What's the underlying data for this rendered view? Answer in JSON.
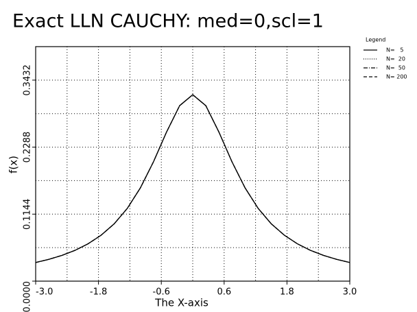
{
  "chart_data": {
    "type": "line",
    "title": "Exact LLN CAUCHY: med=0,scl=1",
    "x_label": "The X-axis",
    "y_label": "f(x)",
    "legend_title": "Legend",
    "x": [
      -3,
      -2.75,
      -2.5,
      -2.25,
      -2,
      -1.75,
      -1.5,
      -1.25,
      -1,
      -0.75,
      -0.5,
      -0.25,
      0,
      0.25,
      0.5,
      0.75,
      1,
      1.25,
      1.5,
      1.75,
      2,
      2.25,
      2.5,
      2.75,
      3
    ],
    "series": [
      {
        "name": "N=   5",
        "color": "#000000",
        "dash": "solid",
        "values": [
          0.0318,
          0.0372,
          0.0439,
          0.0525,
          0.0637,
          0.0784,
          0.0979,
          0.1242,
          0.1592,
          0.2037,
          0.2546,
          0.2996,
          0.3183,
          0.2996,
          0.2546,
          0.2037,
          0.1592,
          0.1242,
          0.0979,
          0.0784,
          0.0637,
          0.0525,
          0.0439,
          0.0372,
          0.0318
        ]
      },
      {
        "name": "N=  20",
        "color": "#000000",
        "dash": "dotted",
        "values": [
          0.0318,
          0.0372,
          0.0439,
          0.0525,
          0.0637,
          0.0784,
          0.0979,
          0.1242,
          0.1592,
          0.2037,
          0.2546,
          0.2996,
          0.3183,
          0.2996,
          0.2546,
          0.2037,
          0.1592,
          0.1242,
          0.0979,
          0.0784,
          0.0637,
          0.0525,
          0.0439,
          0.0372,
          0.0318
        ]
      },
      {
        "name": "N=  50",
        "color": "#000000",
        "dash": "dashdot",
        "values": [
          0.0318,
          0.0372,
          0.0439,
          0.0525,
          0.0637,
          0.0784,
          0.0979,
          0.1242,
          0.1592,
          0.2037,
          0.2546,
          0.2996,
          0.3183,
          0.2996,
          0.2546,
          0.2037,
          0.1592,
          0.1242,
          0.0979,
          0.0784,
          0.0637,
          0.0525,
          0.0439,
          0.0372,
          0.0318
        ]
      },
      {
        "name": "N= 200",
        "color": "#000000",
        "dash": "dashed",
        "values": [
          0.0318,
          0.0372,
          0.0439,
          0.0525,
          0.0637,
          0.0784,
          0.0979,
          0.1242,
          0.1592,
          0.2037,
          0.2546,
          0.2996,
          0.3183,
          0.2996,
          0.2546,
          0.2037,
          0.1592,
          0.1242,
          0.0979,
          0.0784,
          0.0637,
          0.0525,
          0.0439,
          0.0372,
          0.0318
        ]
      }
    ],
    "xlim": [
      -3,
      3
    ],
    "xticks": [
      {
        "value": -3,
        "label": "-3.0"
      },
      -1.8,
      -0.6,
      0.6,
      1.8,
      {
        "value": 3,
        "label": "3.0"
      }
    ],
    "xminor": [
      -2.4,
      -1.2,
      0,
      1.2,
      2.4
    ],
    "ylim": [
      0,
      0.4004
    ],
    "yticks": [
      {
        "value": 0,
        "label": "0.0000"
      },
      0.1144,
      0.2288,
      0.3432
    ],
    "yminor": [
      0.0572,
      0.1716,
      0.286
    ],
    "grid": true,
    "legend": "right"
  }
}
